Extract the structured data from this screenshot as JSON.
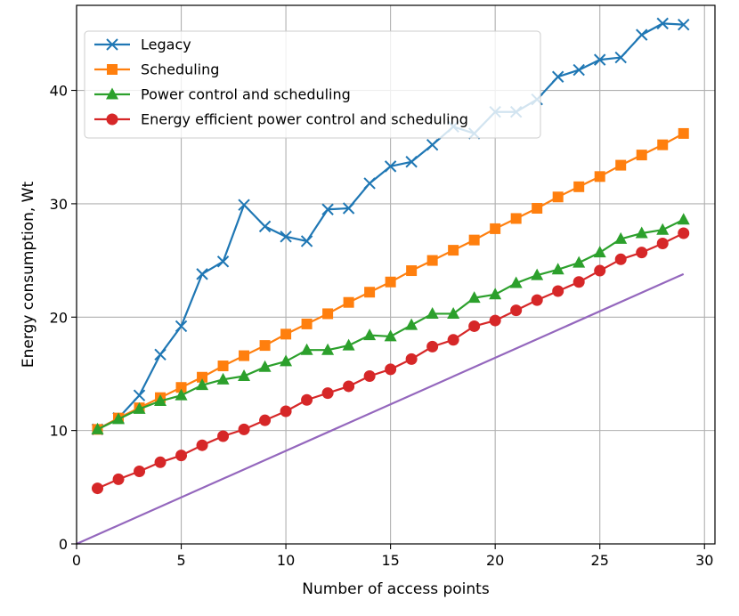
{
  "chart_data": {
    "type": "line",
    "title": "",
    "xlabel": "Number of access points",
    "ylabel": "Energy consumption, Wt",
    "xlim": [
      0,
      30.5
    ],
    "ylim": [
      0,
      47.5
    ],
    "xticks": [
      0,
      5,
      10,
      15,
      20,
      25,
      30
    ],
    "yticks": [
      0,
      10,
      20,
      30,
      40
    ],
    "grid": true,
    "legend_position": "top-left",
    "x": [
      1,
      2,
      3,
      4,
      5,
      6,
      7,
      8,
      9,
      10,
      11,
      12,
      13,
      14,
      15,
      16,
      17,
      18,
      19,
      20,
      21,
      22,
      23,
      24,
      25,
      26,
      27,
      28,
      29
    ],
    "series": [
      {
        "name": "Legacy",
        "color": "#1f77b4",
        "marker": "x",
        "values": [
          10.1,
          11.1,
          13.1,
          16.7,
          19.2,
          23.8,
          24.9,
          29.9,
          28.0,
          27.1,
          26.7,
          29.5,
          29.6,
          31.8,
          33.3,
          33.7,
          35.2,
          36.8,
          36.2,
          38.1,
          38.1,
          39.2,
          41.2,
          41.8,
          42.7,
          42.9,
          44.9,
          45.9,
          45.8
        ]
      },
      {
        "name": "Scheduling",
        "color": "#ff7f0e",
        "marker": "square",
        "values": [
          10.1,
          11.1,
          12.0,
          12.9,
          13.8,
          14.7,
          15.7,
          16.6,
          17.5,
          18.5,
          19.4,
          20.3,
          21.3,
          22.2,
          23.1,
          24.1,
          25.0,
          25.9,
          26.8,
          27.8,
          28.7,
          29.6,
          30.6,
          31.5,
          32.4,
          33.4,
          34.3,
          35.2,
          36.2
        ]
      },
      {
        "name": "Power control and scheduling",
        "color": "#2ca02c",
        "marker": "triangle",
        "values": [
          10.1,
          11.0,
          11.9,
          12.6,
          13.1,
          14.0,
          14.5,
          14.8,
          15.6,
          16.1,
          17.1,
          17.1,
          17.5,
          18.4,
          18.3,
          19.3,
          20.3,
          20.3,
          21.7,
          22.0,
          23.0,
          23.7,
          24.2,
          24.8,
          25.7,
          26.9,
          27.4,
          27.7,
          28.6
        ]
      },
      {
        "name": "Energy efficient power control and scheduling",
        "color": "#d62728",
        "marker": "circle",
        "values": [
          4.9,
          5.7,
          6.4,
          7.2,
          7.8,
          8.7,
          9.5,
          10.1,
          10.9,
          11.7,
          12.7,
          13.3,
          13.9,
          14.8,
          15.4,
          16.3,
          17.4,
          18.0,
          19.2,
          19.7,
          20.6,
          21.5,
          22.3,
          23.1,
          24.1,
          25.1,
          25.7,
          26.5,
          27.4
        ]
      },
      {
        "name": "",
        "color": "#9467bd",
        "marker": "none",
        "x": [
          0,
          29
        ],
        "values": [
          0,
          23.8
        ]
      }
    ]
  }
}
